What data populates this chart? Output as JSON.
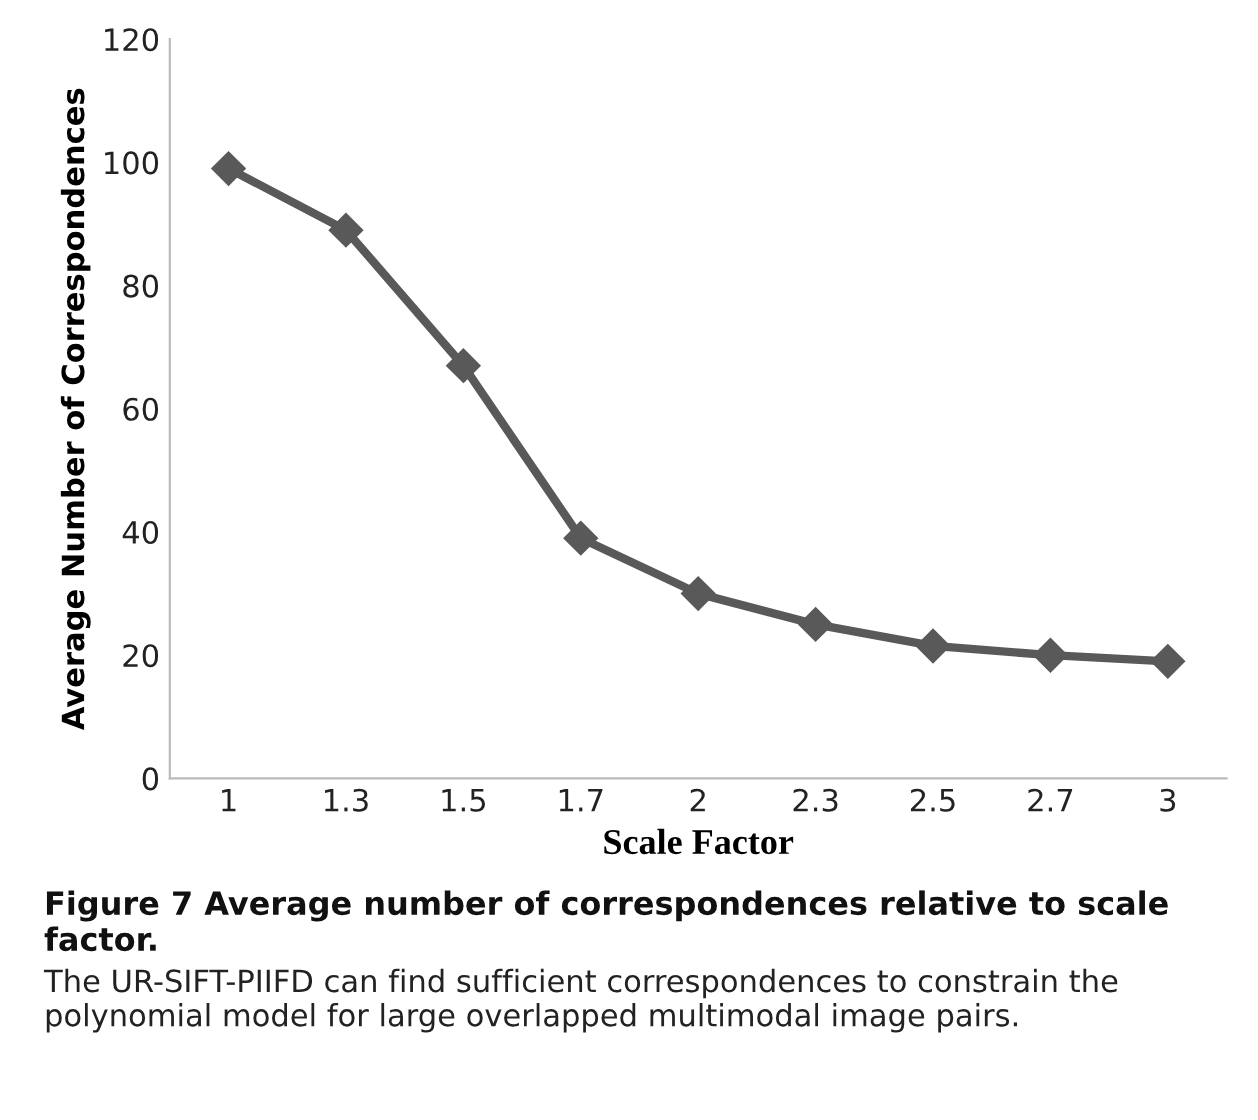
{
  "chart_data": {
    "type": "line",
    "title": "Figure 7 Average number of correspondences relative to scale factor.",
    "xlabel": "Scale Factor",
    "ylabel": "Average Number of Correspondences",
    "categories": [
      "1",
      "1.3",
      "1.5",
      "1.7",
      "2",
      "2.3",
      "2.5",
      "2.7",
      "3"
    ],
    "series": [
      {
        "color": "#595959",
        "values": [
          99,
          89,
          67,
          39,
          30,
          25,
          21.5,
          20,
          19
        ]
      }
    ],
    "ylim": [
      0,
      120
    ],
    "yticks": [
      0,
      20,
      40,
      60,
      80,
      100,
      120
    ],
    "marker": "diamond",
    "line_style": "solid",
    "grid": false,
    "legend": false,
    "annotations": [
      "The UR-SIFT-PIIFD can find sufficient correspondences to constrain the polynomial model for large overlapped multimodal image pairs."
    ]
  }
}
